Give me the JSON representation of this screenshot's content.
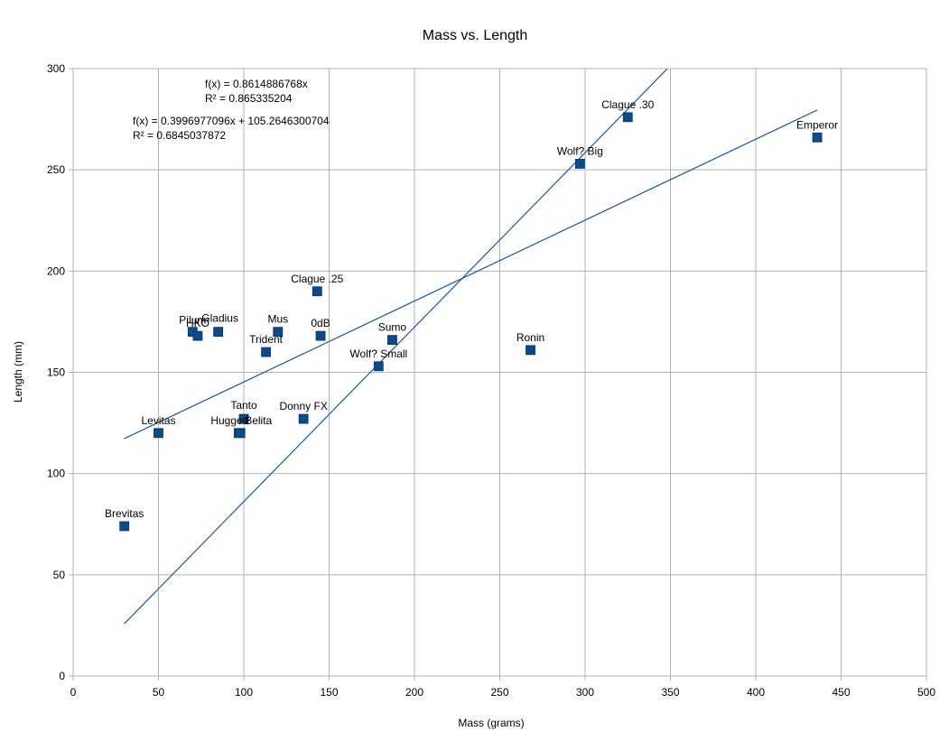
{
  "chart_data": {
    "type": "scatter",
    "title": "Mass vs. Length",
    "xlabel": "Mass (grams)",
    "ylabel": "Length (mm)",
    "xlim": [
      0,
      500
    ],
    "ylim": [
      0,
      300
    ],
    "x_ticks": [
      "0",
      "50",
      "100",
      "150",
      "200",
      "250",
      "300",
      "350",
      "400",
      "450",
      "500"
    ],
    "y_ticks": [
      "0",
      "50",
      "100",
      "150",
      "200",
      "250",
      "300"
    ],
    "grid": true,
    "colors": {
      "marker": "#0a4c8a",
      "trendline": "#1f5a96",
      "grid": "#b3b3b3"
    },
    "points": [
      {
        "label": "Brevitas",
        "x": 30,
        "y": 74
      },
      {
        "label": "Levitas",
        "x": 50,
        "y": 120
      },
      {
        "label": "Pilum",
        "x": 70,
        "y": 170
      },
      {
        "label": "HKO",
        "x": 73,
        "y": 168
      },
      {
        "label": "Gladius",
        "x": 85,
        "y": 170
      },
      {
        "label": "Huggett",
        "x": 97,
        "y": 120
      },
      {
        "label": "Belita",
        "x": 98,
        "y": 120
      },
      {
        "label": "Tanto",
        "x": 100,
        "y": 127
      },
      {
        "label": "Trident",
        "x": 113,
        "y": 160
      },
      {
        "label": "Mus",
        "x": 120,
        "y": 170
      },
      {
        "label": "Donny FX",
        "x": 135,
        "y": 127
      },
      {
        "label": "Clague .25",
        "x": 143,
        "y": 190
      },
      {
        "label": "0dB",
        "x": 145,
        "y": 168
      },
      {
        "label": "Wolf? Small",
        "x": 179,
        "y": 153
      },
      {
        "label": "Sumo",
        "x": 187,
        "y": 166
      },
      {
        "label": "Ronin",
        "x": 268,
        "y": 161
      },
      {
        "label": "Wolf? Big",
        "x": 297,
        "y": 253
      },
      {
        "label": "Clague .30",
        "x": 325,
        "y": 276
      },
      {
        "label": "Emperor",
        "x": 436,
        "y": 266
      }
    ],
    "trendlines": [
      {
        "slope": 0.8614886768,
        "intercept": 0,
        "x_range": [
          30,
          348
        ],
        "equation": "f(x) = 0.8614886768x",
        "r2": "R² = 0.865335204"
      },
      {
        "slope": 0.3996977096,
        "intercept": 105.2646300704,
        "x_range": [
          30,
          436
        ],
        "equation": "f(x) = 0.3996977096x + 105.2646300704",
        "r2": "R² = 0.6845037872"
      }
    ]
  }
}
